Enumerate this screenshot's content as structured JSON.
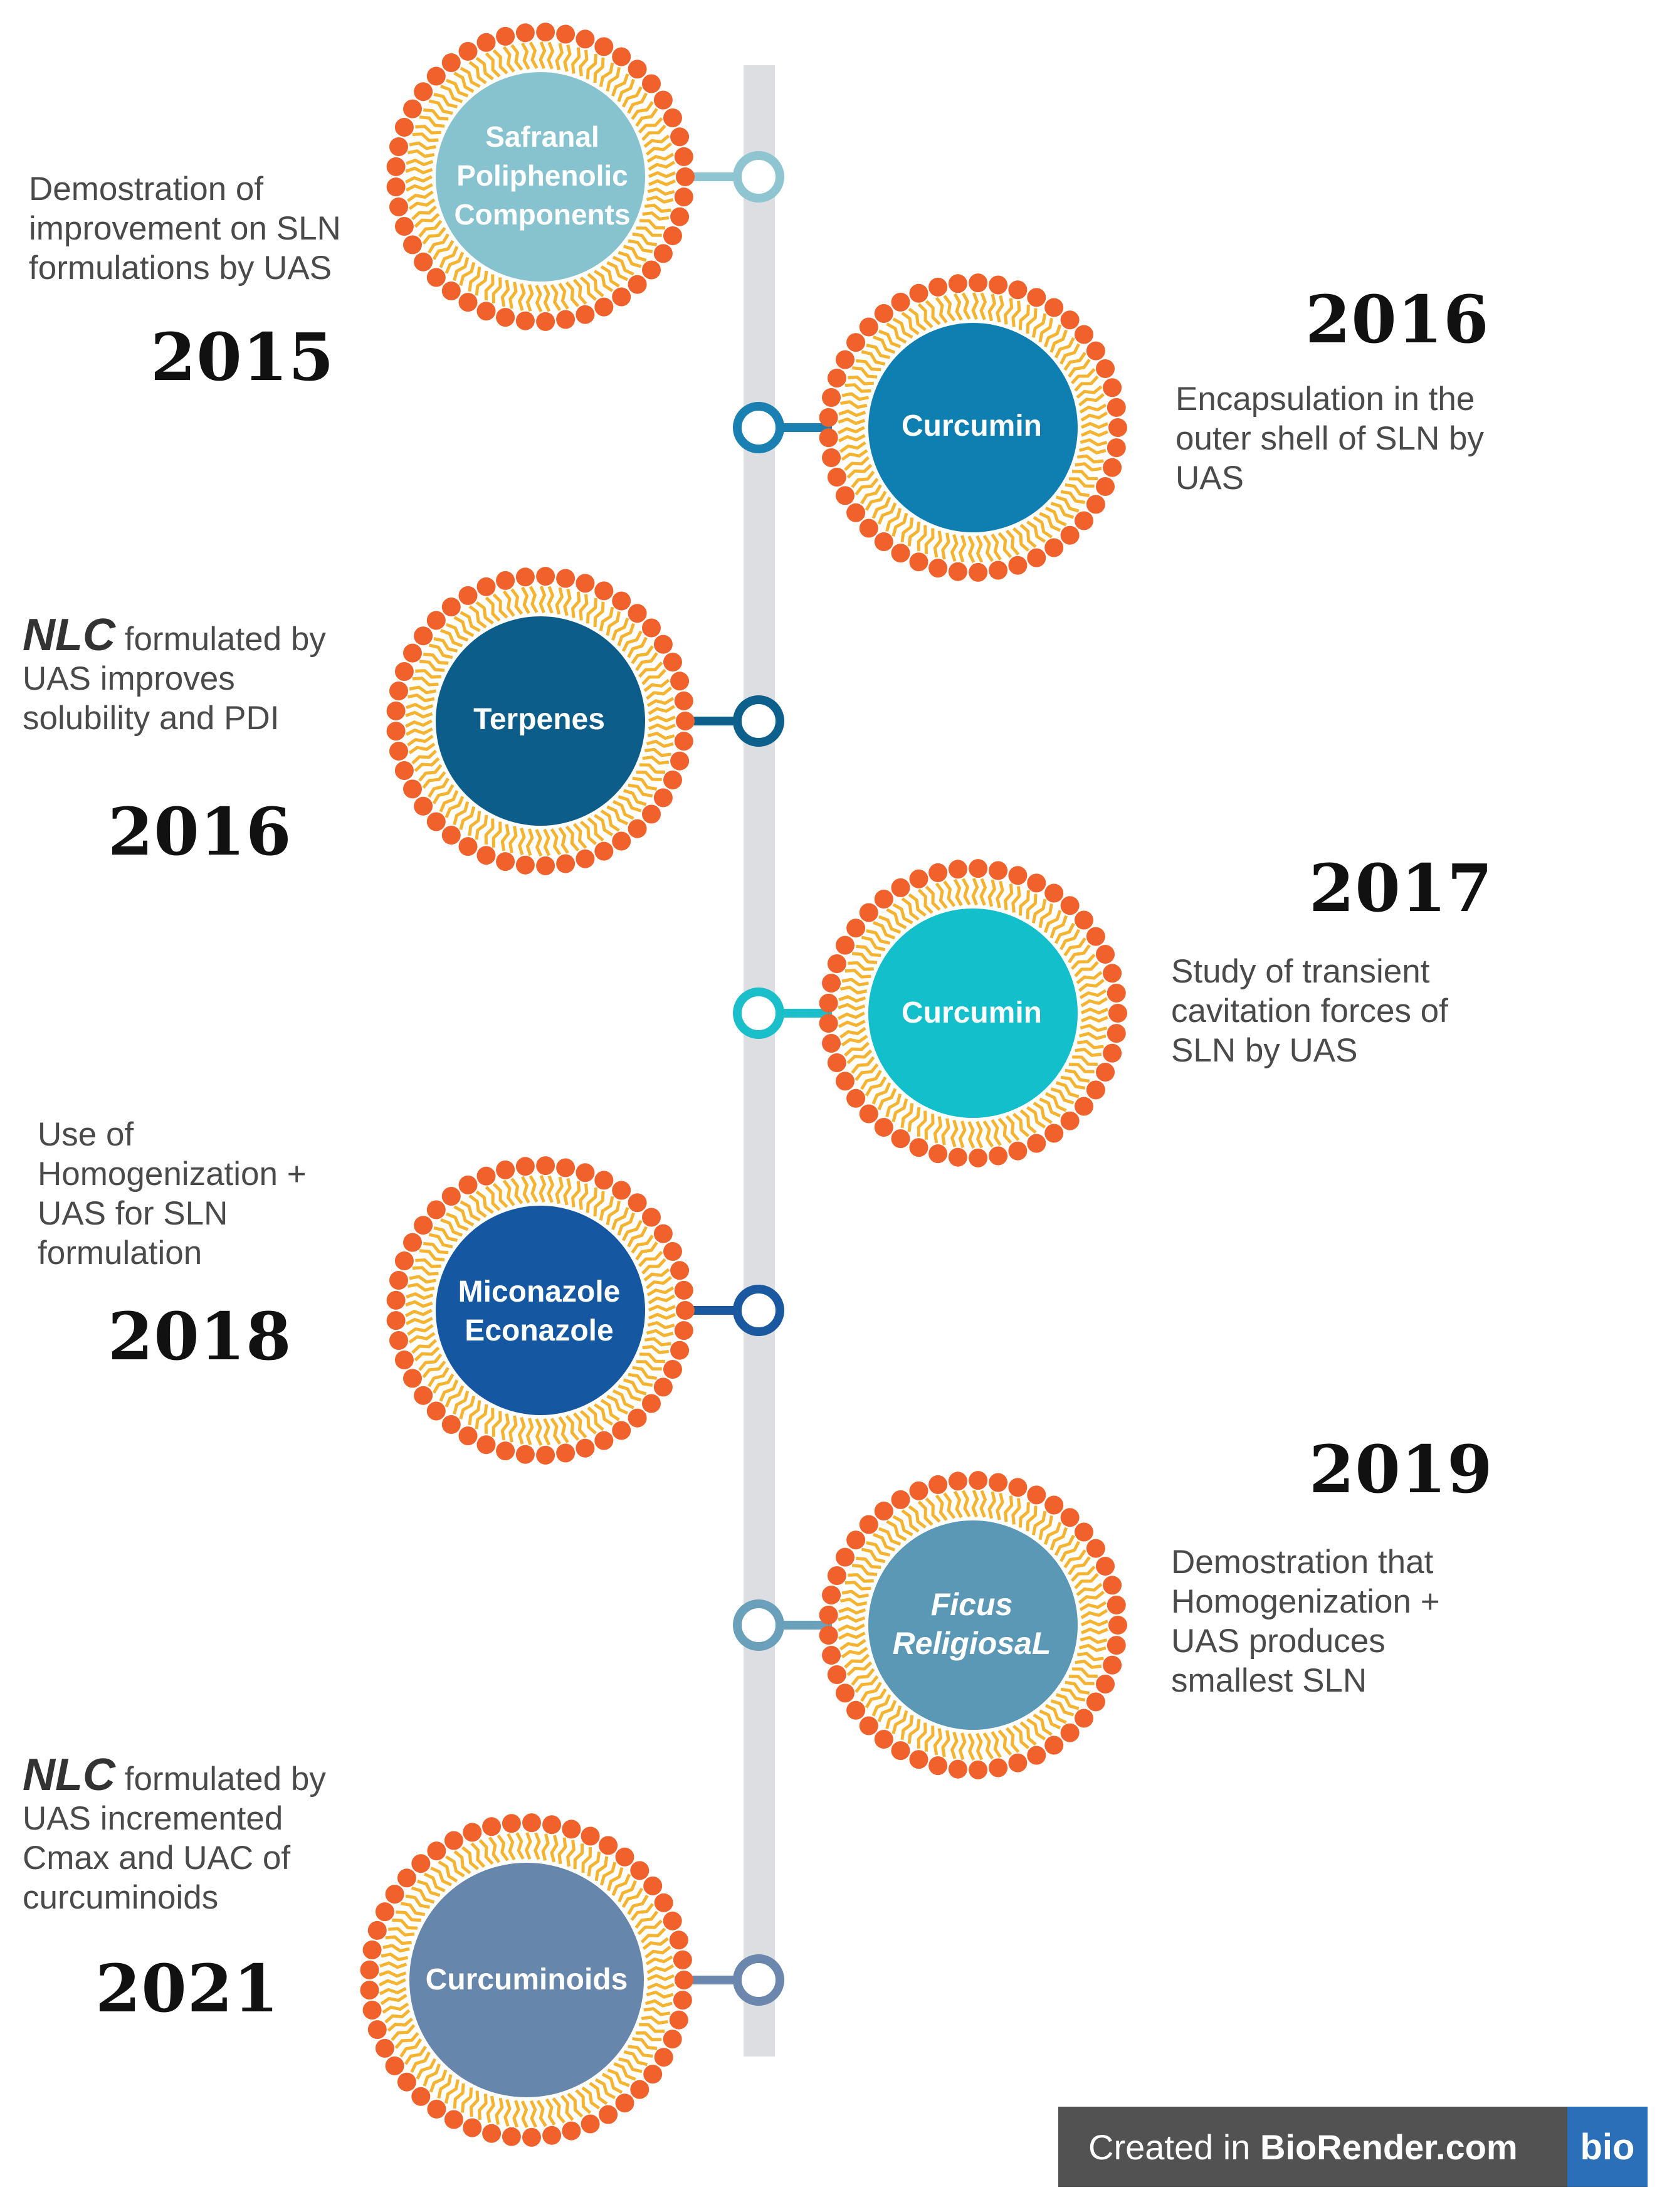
{
  "colors": {
    "lipid_head": "#f0612c",
    "lipid_tail": "#f5b330",
    "timeline_bar": "#dcdee2"
  },
  "events": [
    {
      "year": "2015",
      "core_label": [
        "Safranal",
        "Poliphenolic",
        "Components"
      ],
      "description": [
        "Demostration of",
        "improvement on SLN",
        "formulations by UAS"
      ],
      "core_color": "#87c3cf",
      "node_color": "#8fc5d1"
    },
    {
      "year": "2016",
      "core_label": [
        "Curcumin"
      ],
      "description": [
        "Encapsulation in the",
        "outer shell of SLN by",
        "UAS"
      ],
      "core_color": "#0e7fb0",
      "node_color": "#1a80b2"
    },
    {
      "year": "2016",
      "core_label": [
        "Terpenes"
      ],
      "description_prefix": "NLC",
      "description": [
        "formulated by",
        "UAS improves",
        "solubility and PDI"
      ],
      "core_color": "#0c5d89",
      "node_color": "#0d5f8c"
    },
    {
      "year": "2017",
      "core_label": [
        "Curcumin"
      ],
      "description": [
        "Study of transient",
        "cavitation forces of",
        "SLN by UAS"
      ],
      "core_color": "#12bfcb",
      "node_color": "#1bbfc9"
    },
    {
      "year": "2018",
      "core_label": [
        "Miconazole",
        "Econazole"
      ],
      "description": [
        "Use of",
        "Homogenization +",
        "UAS for SLN",
        "formulation"
      ],
      "core_color": "#1557a0",
      "node_color": "#1a58a0"
    },
    {
      "year": "2019",
      "core_label": [
        "Ficus",
        "ReligiosaL"
      ],
      "description": [
        "Demostration that",
        "Homogenization +",
        "UAS produces",
        "smallest SLN"
      ],
      "core_color": "#5b98b5",
      "node_color": "#6ba0bb"
    },
    {
      "year": "2021",
      "core_label": [
        "Curcuminoids"
      ],
      "description_prefix": "NLC",
      "description": [
        "formulated by",
        "UAS incremented",
        "Cmax and UAC of",
        "curcuminoids"
      ],
      "core_color": "#6686ac",
      "node_color": "#6b87ad"
    }
  ],
  "badge": {
    "prefix": "Created in ",
    "brand": "BioRender.com",
    "logo": "bio"
  }
}
